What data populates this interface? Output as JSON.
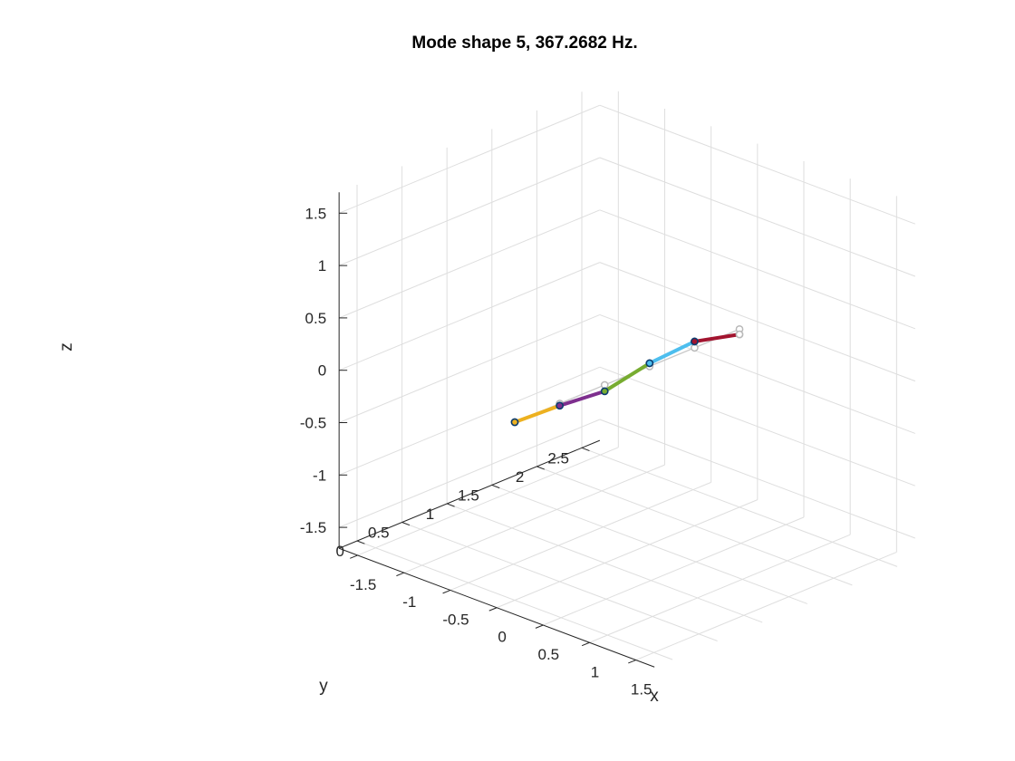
{
  "chart_data": {
    "type": "line3d",
    "title": "Mode shape 5, 367.2682 Hz.",
    "xlabel": "x",
    "ylabel": "y",
    "zlabel": "z",
    "xlim": [
      -1.7,
      1.7
    ],
    "ylim": [
      -0.2,
      2.7
    ],
    "zlim": [
      -1.7,
      1.7
    ],
    "xticks": [
      -1.5,
      -1,
      -0.5,
      0,
      0.5,
      1,
      1.5
    ],
    "xticklabels": [
      "-1.5",
      "-1",
      "-0.5",
      "0",
      "0.5",
      "1",
      "1.5"
    ],
    "yticks": [
      0,
      0.5,
      1,
      1.5,
      2,
      2.5
    ],
    "yticklabels": [
      "0",
      "0.5",
      "1",
      "1.5",
      "2",
      "2.5"
    ],
    "zticks": [
      -1.5,
      -1,
      -0.5,
      0,
      0.5,
      1,
      1.5
    ],
    "zticklabels": [
      "-1.5",
      "-1",
      "-0.5",
      "0",
      "0.5",
      "1",
      "1.5"
    ],
    "grid": true,
    "undeformed": {
      "color": "#c8c8c8",
      "x": [
        0,
        0,
        0,
        0,
        0,
        0
      ],
      "y": [
        0,
        0.5,
        1.0,
        1.5,
        2.0,
        2.5
      ],
      "z": [
        0,
        0,
        0,
        0,
        0,
        0
      ]
    },
    "deformed_nodes": {
      "x": [
        0,
        0,
        0,
        0,
        0,
        0
      ],
      "y": [
        0,
        0.5,
        1.0,
        1.5,
        2.0,
        2.5
      ],
      "z": [
        0,
        -0.02,
        -0.06,
        0.03,
        0.06,
        -0.05
      ]
    },
    "segments": [
      {
        "from": 0,
        "to": 1,
        "color": "#edb120"
      },
      {
        "from": 1,
        "to": 2,
        "color": "#7e2f8e"
      },
      {
        "from": 2,
        "to": 3,
        "color": "#77ac30"
      },
      {
        "from": 3,
        "to": 4,
        "color": "#4dbeee"
      },
      {
        "from": 4,
        "to": 5,
        "color": "#a2142f"
      }
    ],
    "marker_colors": {
      "edge": "#0b3b6e",
      "undeformed": "#b8b8b8"
    }
  }
}
